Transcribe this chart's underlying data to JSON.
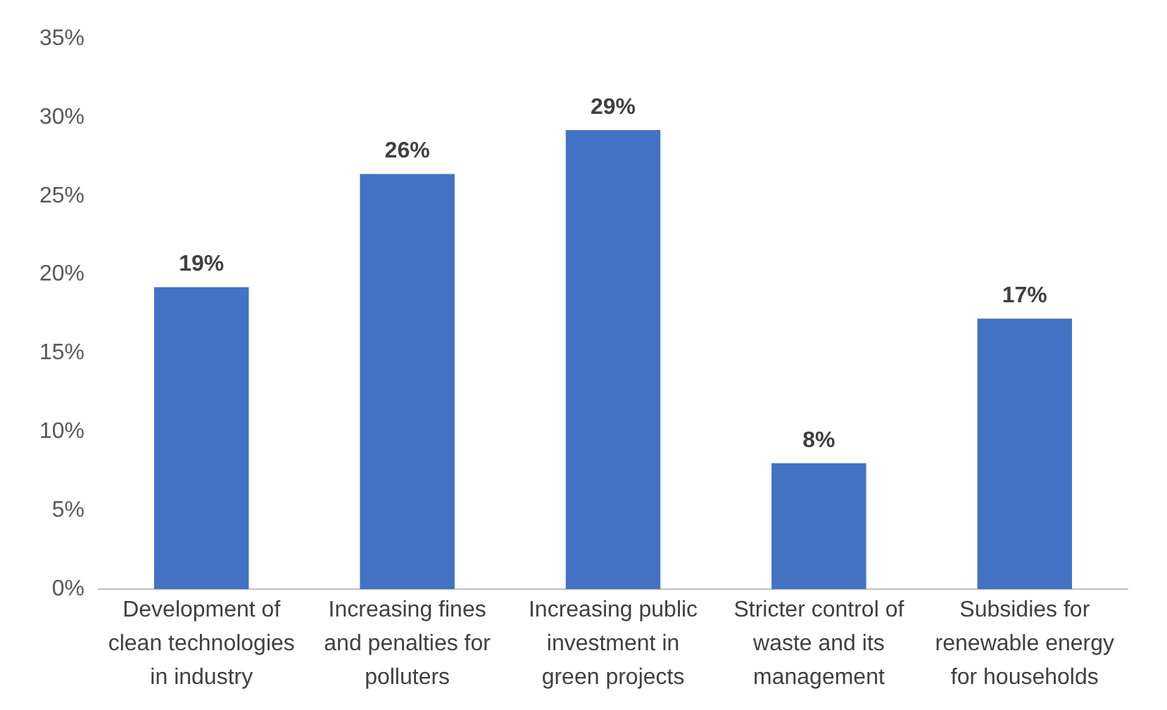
{
  "chart_data": {
    "type": "bar",
    "categories": [
      "Development of clean technologies in industry",
      "Increasing fines and penalties for polluters",
      "Increasing public investment in green projects",
      "Stricter control of waste and its management",
      "Subsidies for renewable energy for households"
    ],
    "values": [
      19.2,
      26.4,
      29.2,
      8,
      17.2
    ],
    "value_labels": [
      "19%",
      "26%",
      "29%",
      "8%",
      "17%"
    ],
    "color": "#4472c4",
    "ylim": [
      0,
      35
    ],
    "yticks": [
      {
        "value": 0,
        "label": "0%"
      },
      {
        "value": 5,
        "label": "5%"
      },
      {
        "value": 10,
        "label": "10%"
      },
      {
        "value": 15,
        "label": "15%"
      },
      {
        "value": 20,
        "label": "20%"
      },
      {
        "value": 25,
        "label": "25%"
      },
      {
        "value": 30,
        "label": "30%"
      },
      {
        "value": 35,
        "label": "35%"
      }
    ],
    "grid": false,
    "legend": false
  }
}
